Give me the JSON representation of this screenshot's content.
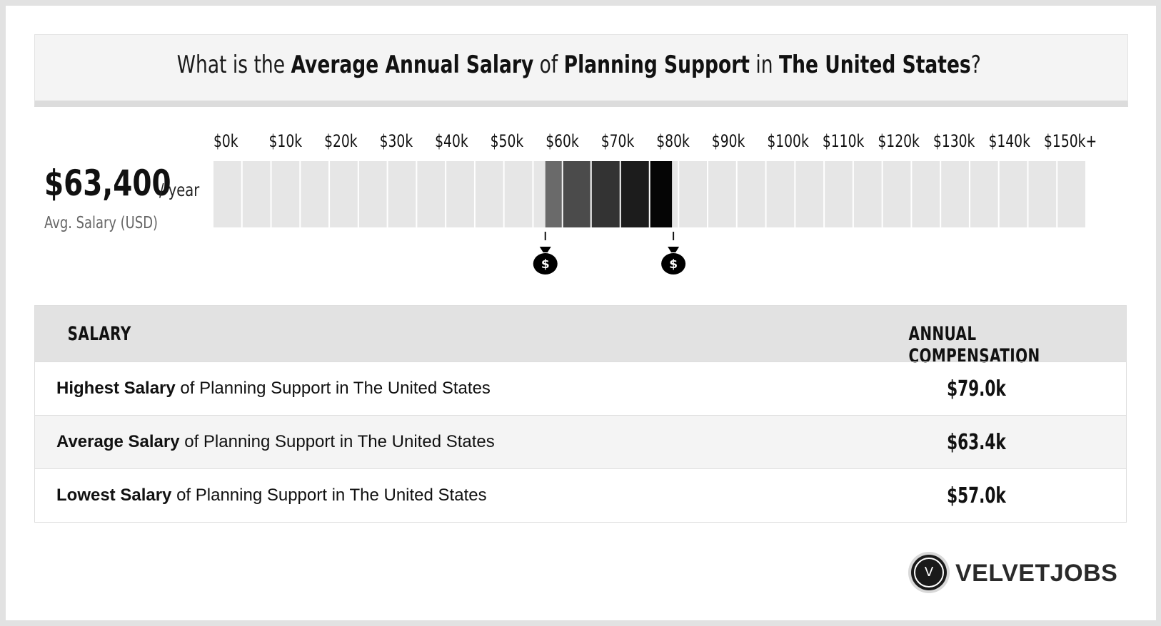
{
  "header": {
    "prefix": "What is the",
    "bold1": "Average Annual Salary",
    "mid1": "of",
    "bold2": "Planning Support",
    "mid2": "in",
    "bold3": "The United States",
    "suffix": "?"
  },
  "average": {
    "value": "$63,400",
    "unit": "/ year",
    "label": "Avg. Salary (USD)"
  },
  "chart_data": {
    "type": "bar",
    "categories": [
      "$0k",
      "$10k",
      "$20k",
      "$30k",
      "$40k",
      "$50k",
      "$60k",
      "$70k",
      "$80k",
      "$90k",
      "$100k",
      "$110k",
      "$120k",
      "$130k",
      "$140k",
      "$150k+"
    ],
    "range_low": 57000,
    "range_high": 79000,
    "average": 63400,
    "xlim": [
      0,
      150000
    ],
    "highlight_colors": [
      "#6a6a6a",
      "#4b4b4b",
      "#333333",
      "#1c1c1c",
      "#050505"
    ],
    "base_color": "#e6e6e6",
    "marker_icon": "money-bag-icon"
  },
  "table": {
    "col1": "SALARY",
    "col2": "ANNUAL COMPENSATION",
    "rows": [
      {
        "bold": "Highest Salary",
        "rest": "of Planning Support in The United States",
        "value": "$79.0k"
      },
      {
        "bold": "Average Salary",
        "rest": "of Planning Support in The United States",
        "value": "$63.4k"
      },
      {
        "bold": "Lowest Salary",
        "rest": "of Planning Support in The United States",
        "value": "$57.0k"
      }
    ]
  },
  "brand": {
    "logo_letter": "V",
    "name": "VELVETJOBS"
  }
}
